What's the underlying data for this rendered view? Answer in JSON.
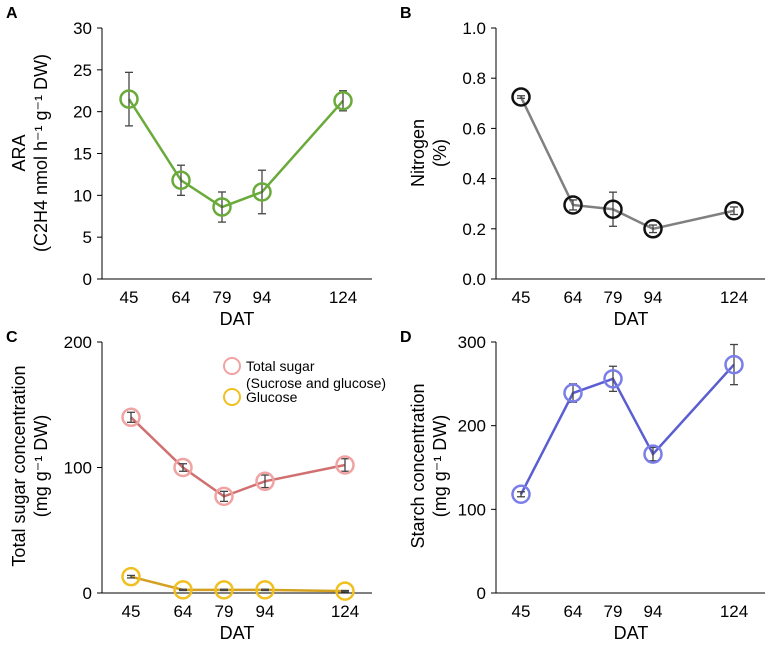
{
  "chart_data": [
    {
      "panel": "A",
      "type": "line",
      "x": [
        45,
        64,
        79,
        94,
        124
      ],
      "xlabel": "DAT",
      "ylabel_line1": "ARA",
      "ylabel_line2": "(C2H4 nmol h⁻¹ g⁻¹ DW)",
      "ylim": [
        0,
        30
      ],
      "yticks": [
        0,
        5,
        10,
        15,
        20,
        25,
        30
      ],
      "series": [
        {
          "name": "ARA",
          "color": "#6aaa3a",
          "values": [
            21.5,
            11.8,
            8.6,
            10.4,
            21.3
          ],
          "errors": [
            3.2,
            1.8,
            1.8,
            2.6,
            1.2
          ]
        }
      ]
    },
    {
      "panel": "B",
      "type": "line",
      "x": [
        45,
        64,
        79,
        94,
        124
      ],
      "xlabel": "DAT",
      "ylabel_line1": "Nitrogen",
      "ylabel_line2": "(%)",
      "ylim": [
        0,
        1.0
      ],
      "yticks": [
        "0.0",
        "0.2",
        "0.4",
        "0.6",
        "0.8",
        "1.0"
      ],
      "series": [
        {
          "name": "Nitrogen",
          "color": "#808080",
          "marker_color": "#111111",
          "values": [
            0.725,
            0.295,
            0.278,
            0.2,
            0.272
          ],
          "errors": [
            0.005,
            0.02,
            0.068,
            0.015,
            0.015
          ]
        }
      ]
    },
    {
      "panel": "C",
      "type": "line",
      "x": [
        45,
        64,
        79,
        94,
        124
      ],
      "xlabel": "DAT",
      "ylabel_line1": "Total sugar concentration",
      "ylabel_line2": "(mg g⁻¹ DW)",
      "ylim": [
        0,
        200
      ],
      "yticks": [
        0,
        100,
        200
      ],
      "legend": {
        "total_line1": "Total sugar",
        "total_line2": "(Sucrose and glucose)",
        "glucose": "Glucose"
      },
      "series": [
        {
          "name": "Total sugar (Sucrose and glucose)",
          "color": "#d07070",
          "marker_color": "#f0a3a3",
          "values": [
            140,
            100,
            77,
            89,
            102
          ],
          "errors": [
            4,
            3,
            4,
            5,
            5
          ]
        },
        {
          "name": "Glucose",
          "color": "#d4a020",
          "marker_color": "#f0c020",
          "values": [
            13,
            2.5,
            2.5,
            2.5,
            1.5
          ],
          "errors": [
            1,
            0.5,
            0.5,
            0.5,
            0.5
          ]
        }
      ]
    },
    {
      "panel": "D",
      "type": "line",
      "x": [
        45,
        64,
        79,
        94,
        124
      ],
      "xlabel": "DAT",
      "ylabel_line1": "Starch concentration",
      "ylabel_line2": "(mg g⁻¹ DW)",
      "ylim": [
        0,
        300
      ],
      "yticks": [
        0,
        100,
        200,
        300
      ],
      "series": [
        {
          "name": "Starch",
          "color": "#5a5ed0",
          "marker_color": "#7a7ee8",
          "values": [
            118,
            239,
            256,
            166,
            273
          ],
          "errors": [
            3,
            11,
            15,
            8,
            24
          ]
        }
      ]
    }
  ]
}
